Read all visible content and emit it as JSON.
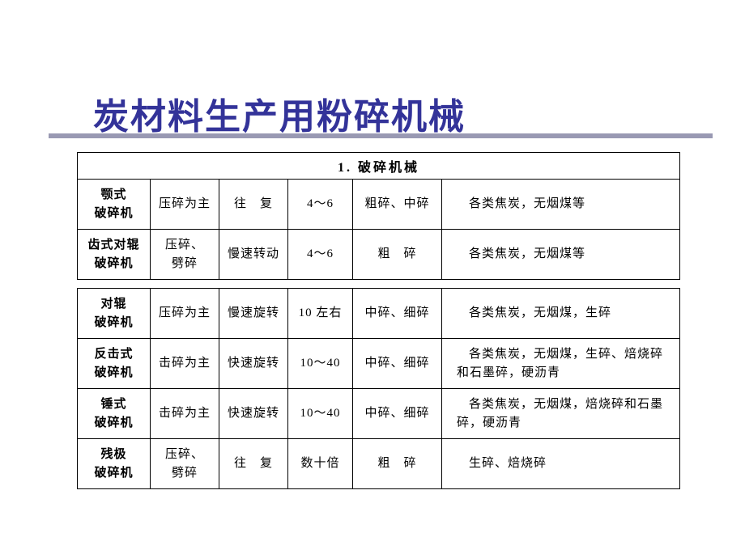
{
  "title": "炭材料生产用粉碎机械",
  "section_header": "1. 破碎机械",
  "colors": {
    "title_color": "#333399",
    "rule_color": "#9999b3",
    "text_color": "#000000",
    "border_color": "#000000",
    "background": "#ffffff"
  },
  "table1": {
    "rows": [
      {
        "name": "颚式\n破碎机",
        "c1": "压碎为主",
        "c2": "往　复",
        "c3": "4～6",
        "c4": "粗碎、中碎",
        "c5": "各类焦炭，无烟煤等"
      },
      {
        "name": "齿式对辊\n破碎机",
        "c1": "压碎、\n劈碎",
        "c2": "慢速转动",
        "c3": "4～6",
        "c4": "粗　碎",
        "c5": "各类焦炭，无烟煤等"
      }
    ]
  },
  "table2": {
    "rows": [
      {
        "name": "对辊\n破碎机",
        "c1": "压碎为主",
        "c2": "慢速旋转",
        "c3": "10 左右",
        "c4": "中碎、细碎",
        "c5": "各类焦炭，无烟煤，生碎"
      },
      {
        "name": "反击式\n破碎机",
        "c1": "击碎为主",
        "c2": "快速旋转",
        "c3": "10～40",
        "c4": "中碎、细碎",
        "c5": "各类焦炭，无烟煤，生碎、焙烧碎和石墨碎，硬沥青"
      },
      {
        "name": "锤式\n破碎机",
        "c1": "击碎为主",
        "c2": "快速旋转",
        "c3": "10～40",
        "c4": "中碎、细碎",
        "c5": "各类焦炭，无烟煤，焙烧碎和石墨碎，硬沥青"
      },
      {
        "name": "残极\n破碎机",
        "c1": "压碎、\n劈碎",
        "c2": "往　复",
        "c3": "数十倍",
        "c4": "粗　碎",
        "c5": "生碎、焙烧碎"
      }
    ]
  }
}
